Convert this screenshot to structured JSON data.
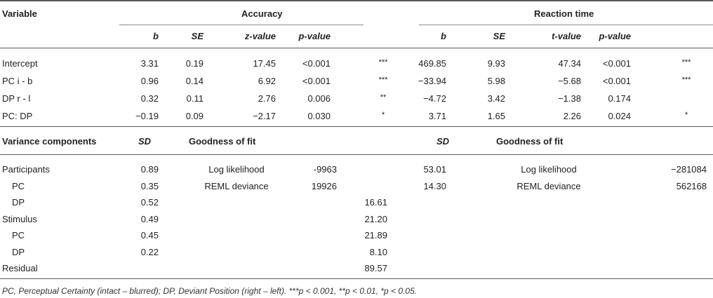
{
  "headers": {
    "variable": "Variable",
    "accuracy": "Accuracy",
    "reaction_time": "Reaction time",
    "acc_cols": [
      "b",
      "SE",
      "z-value",
      "p-value"
    ],
    "rt_cols": [
      "b",
      "SE",
      "t-value",
      "p-value"
    ]
  },
  "fixed_effects": [
    {
      "label": "Intercept",
      "acc": [
        "3.31",
        "0.19",
        "17.45",
        "<0.001",
        "***"
      ],
      "rt": [
        "469.85",
        "9.93",
        "47.34",
        "<0.001",
        "***"
      ]
    },
    {
      "label": "PC i - b",
      "acc": [
        "0.96",
        "0.14",
        "6.92",
        "<0.001",
        "***"
      ],
      "rt": [
        "−33.94",
        "5.98",
        "−5.68",
        "<0.001",
        "***"
      ]
    },
    {
      "label": "DP r - l",
      "acc": [
        "0.32",
        "0.11",
        "2.76",
        "0.006",
        "**"
      ],
      "rt": [
        "−4.72",
        "3.42",
        "−1.38",
        "0.174",
        ""
      ]
    },
    {
      "label": "PC: DP",
      "acc": [
        "−0.19",
        "0.09",
        "−2.17",
        "0.030",
        "*"
      ],
      "rt": [
        "3.71",
        "1.65",
        "2.26",
        "0.024",
        "*"
      ]
    }
  ],
  "variance_header": {
    "label": "Variance components",
    "sd": "SD",
    "gof": "Goodness of fit",
    "rt_sd": "SD",
    "rt_gof": "Goodness of fit"
  },
  "variance": [
    {
      "label": "Participants",
      "sd": "0.89",
      "gof_label": "Log likelihood",
      "gof_value": "-9963",
      "extra": "",
      "rt_sd": "53.01",
      "rt_gof_label": "Log likelihood",
      "rt_gof_value": "−281084"
    },
    {
      "label": "PC",
      "sd": "0.35",
      "gof_label": "REML deviance",
      "gof_value": "19926",
      "extra": "",
      "rt_sd": "14.30",
      "rt_gof_label": "REML deviance",
      "rt_gof_value": "562168"
    },
    {
      "label": "DP",
      "sd": "0.52",
      "gof_label": "",
      "gof_value": "",
      "extra": "16.61",
      "rt_sd": "",
      "rt_gof_label": "",
      "rt_gof_value": ""
    },
    {
      "label": "Stimulus",
      "sd": "0.49",
      "gof_label": "",
      "gof_value": "",
      "extra": "21.20",
      "rt_sd": "",
      "rt_gof_label": "",
      "rt_gof_value": ""
    },
    {
      "label": "PC",
      "sd": "0.45",
      "gof_label": "",
      "gof_value": "",
      "extra": "21.89",
      "rt_sd": "",
      "rt_gof_label": "",
      "rt_gof_value": ""
    },
    {
      "label": "DP",
      "sd": "0.22",
      "gof_label": "",
      "gof_value": "",
      "extra": "8.10",
      "rt_sd": "",
      "rt_gof_label": "",
      "rt_gof_value": ""
    },
    {
      "label": "Residual",
      "sd": "",
      "gof_label": "",
      "gof_value": "",
      "extra": "89.57",
      "rt_sd": "",
      "rt_gof_label": "",
      "rt_gof_value": ""
    }
  ],
  "footnote": "PC, Perceptual Certainty (intact – blurred); DP, Deviant Position (right – left). ***p < 0.001, **p < 0.01, *p < 0.05."
}
